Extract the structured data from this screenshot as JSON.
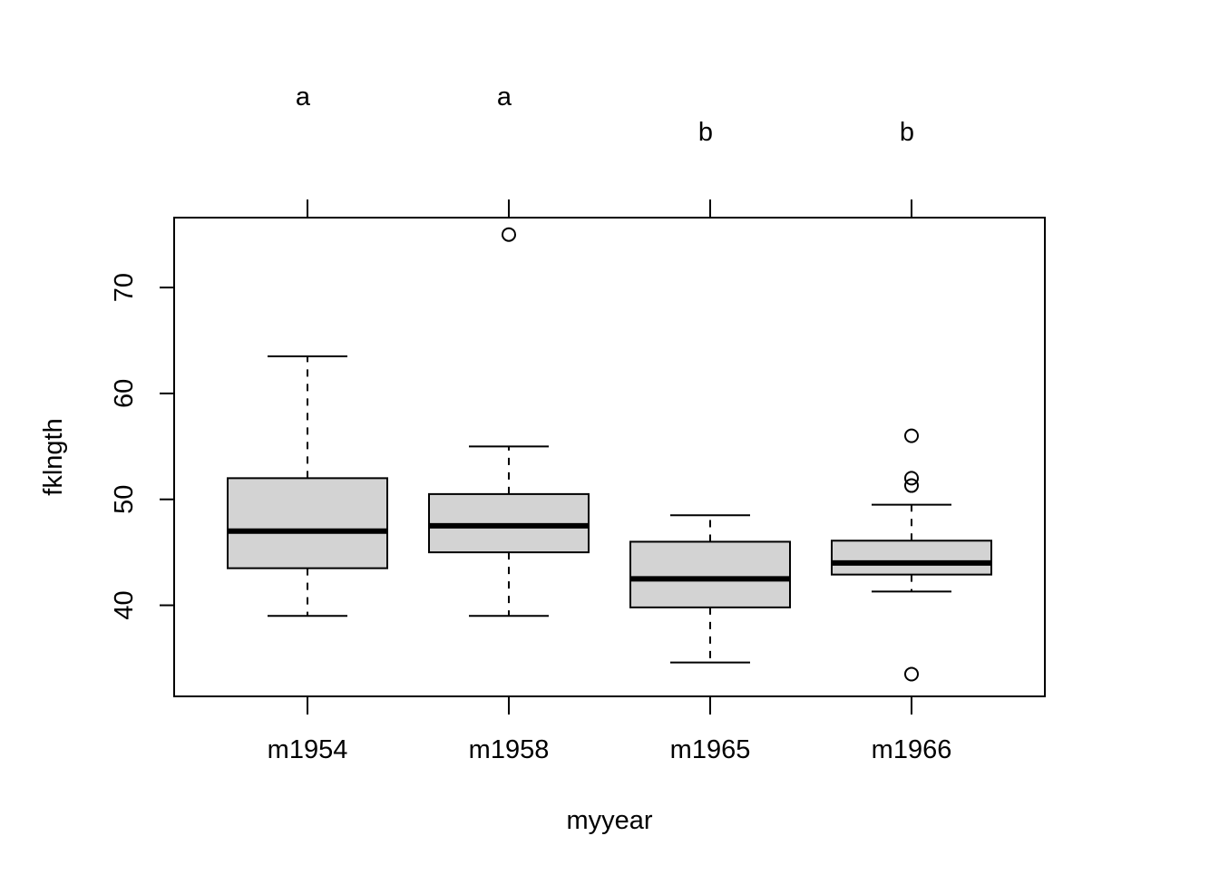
{
  "chart_data": {
    "type": "boxplot",
    "title": "",
    "xlabel": "myyear",
    "ylabel": "fklngth",
    "categories": [
      "m1954",
      "m1958",
      "m1965",
      "m1966"
    ],
    "ylim": [
      31.4,
      76.6
    ],
    "yticks": [
      40,
      50,
      60,
      70
    ],
    "grid": false,
    "box_fill": "#d3d3d3",
    "line_color": "#000000",
    "boxes": [
      {
        "category": "m1954",
        "whisker_low": 39.0,
        "q1": 43.5,
        "median": 47.0,
        "q3": 52.0,
        "whisker_high": 63.5,
        "outliers": []
      },
      {
        "category": "m1958",
        "whisker_low": 39.0,
        "q1": 45.0,
        "median": 47.5,
        "q3": 50.5,
        "whisker_high": 55.0,
        "outliers": [
          75.0
        ]
      },
      {
        "category": "m1965",
        "whisker_low": 34.6,
        "q1": 39.8,
        "median": 42.5,
        "q3": 46.0,
        "whisker_high": 48.5,
        "outliers": []
      },
      {
        "category": "m1966",
        "whisker_low": 41.3,
        "q1": 42.9,
        "median": 44.0,
        "q3": 46.1,
        "whisker_high": 49.5,
        "outliers": [
          56.0,
          52.0,
          51.3,
          33.5
        ]
      }
    ],
    "group_letters": [
      "a",
      "a",
      "b",
      "b"
    ]
  }
}
